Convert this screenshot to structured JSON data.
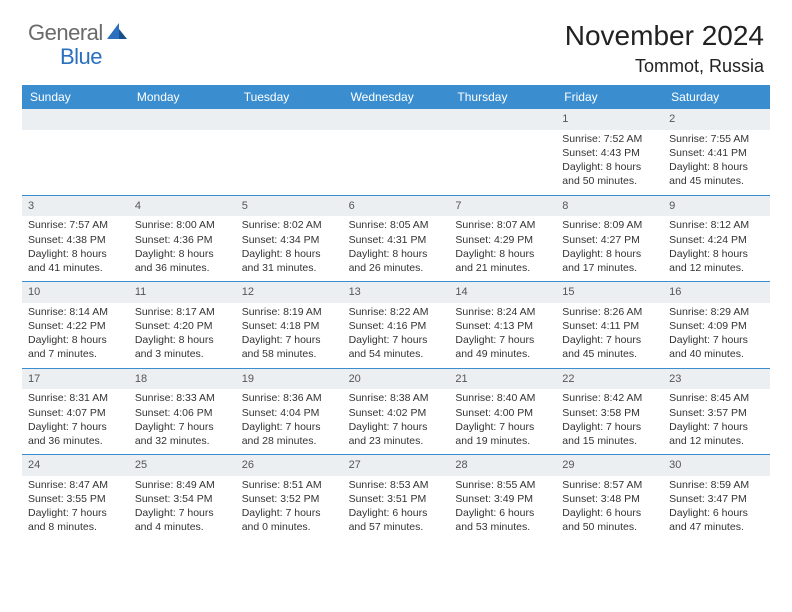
{
  "logo": {
    "general": "General",
    "blue": "Blue"
  },
  "title": "November 2024",
  "location": "Tommot, Russia",
  "colors": {
    "header_bg": "#3a8ed0",
    "day_bg": "#eceff1",
    "rule": "#3a8ed0",
    "text": "#333333",
    "logo_gray": "#6a6a6a",
    "logo_blue": "#2b6fbf"
  },
  "weekdays": [
    "Sunday",
    "Monday",
    "Tuesday",
    "Wednesday",
    "Thursday",
    "Friday",
    "Saturday"
  ],
  "weeks": [
    [
      null,
      null,
      null,
      null,
      null,
      {
        "n": "1",
        "sunrise": "7:52 AM",
        "sunset": "4:43 PM",
        "dl1": "Daylight: 8 hours",
        "dl2": "and 50 minutes."
      },
      {
        "n": "2",
        "sunrise": "7:55 AM",
        "sunset": "4:41 PM",
        "dl1": "Daylight: 8 hours",
        "dl2": "and 45 minutes."
      }
    ],
    [
      {
        "n": "3",
        "sunrise": "7:57 AM",
        "sunset": "4:38 PM",
        "dl1": "Daylight: 8 hours",
        "dl2": "and 41 minutes."
      },
      {
        "n": "4",
        "sunrise": "8:00 AM",
        "sunset": "4:36 PM",
        "dl1": "Daylight: 8 hours",
        "dl2": "and 36 minutes."
      },
      {
        "n": "5",
        "sunrise": "8:02 AM",
        "sunset": "4:34 PM",
        "dl1": "Daylight: 8 hours",
        "dl2": "and 31 minutes."
      },
      {
        "n": "6",
        "sunrise": "8:05 AM",
        "sunset": "4:31 PM",
        "dl1": "Daylight: 8 hours",
        "dl2": "and 26 minutes."
      },
      {
        "n": "7",
        "sunrise": "8:07 AM",
        "sunset": "4:29 PM",
        "dl1": "Daylight: 8 hours",
        "dl2": "and 21 minutes."
      },
      {
        "n": "8",
        "sunrise": "8:09 AM",
        "sunset": "4:27 PM",
        "dl1": "Daylight: 8 hours",
        "dl2": "and 17 minutes."
      },
      {
        "n": "9",
        "sunrise": "8:12 AM",
        "sunset": "4:24 PM",
        "dl1": "Daylight: 8 hours",
        "dl2": "and 12 minutes."
      }
    ],
    [
      {
        "n": "10",
        "sunrise": "8:14 AM",
        "sunset": "4:22 PM",
        "dl1": "Daylight: 8 hours",
        "dl2": "and 7 minutes."
      },
      {
        "n": "11",
        "sunrise": "8:17 AM",
        "sunset": "4:20 PM",
        "dl1": "Daylight: 8 hours",
        "dl2": "and 3 minutes."
      },
      {
        "n": "12",
        "sunrise": "8:19 AM",
        "sunset": "4:18 PM",
        "dl1": "Daylight: 7 hours",
        "dl2": "and 58 minutes."
      },
      {
        "n": "13",
        "sunrise": "8:22 AM",
        "sunset": "4:16 PM",
        "dl1": "Daylight: 7 hours",
        "dl2": "and 54 minutes."
      },
      {
        "n": "14",
        "sunrise": "8:24 AM",
        "sunset": "4:13 PM",
        "dl1": "Daylight: 7 hours",
        "dl2": "and 49 minutes."
      },
      {
        "n": "15",
        "sunrise": "8:26 AM",
        "sunset": "4:11 PM",
        "dl1": "Daylight: 7 hours",
        "dl2": "and 45 minutes."
      },
      {
        "n": "16",
        "sunrise": "8:29 AM",
        "sunset": "4:09 PM",
        "dl1": "Daylight: 7 hours",
        "dl2": "and 40 minutes."
      }
    ],
    [
      {
        "n": "17",
        "sunrise": "8:31 AM",
        "sunset": "4:07 PM",
        "dl1": "Daylight: 7 hours",
        "dl2": "and 36 minutes."
      },
      {
        "n": "18",
        "sunrise": "8:33 AM",
        "sunset": "4:06 PM",
        "dl1": "Daylight: 7 hours",
        "dl2": "and 32 minutes."
      },
      {
        "n": "19",
        "sunrise": "8:36 AM",
        "sunset": "4:04 PM",
        "dl1": "Daylight: 7 hours",
        "dl2": "and 28 minutes."
      },
      {
        "n": "20",
        "sunrise": "8:38 AM",
        "sunset": "4:02 PM",
        "dl1": "Daylight: 7 hours",
        "dl2": "and 23 minutes."
      },
      {
        "n": "21",
        "sunrise": "8:40 AM",
        "sunset": "4:00 PM",
        "dl1": "Daylight: 7 hours",
        "dl2": "and 19 minutes."
      },
      {
        "n": "22",
        "sunrise": "8:42 AM",
        "sunset": "3:58 PM",
        "dl1": "Daylight: 7 hours",
        "dl2": "and 15 minutes."
      },
      {
        "n": "23",
        "sunrise": "8:45 AM",
        "sunset": "3:57 PM",
        "dl1": "Daylight: 7 hours",
        "dl2": "and 12 minutes."
      }
    ],
    [
      {
        "n": "24",
        "sunrise": "8:47 AM",
        "sunset": "3:55 PM",
        "dl1": "Daylight: 7 hours",
        "dl2": "and 8 minutes."
      },
      {
        "n": "25",
        "sunrise": "8:49 AM",
        "sunset": "3:54 PM",
        "dl1": "Daylight: 7 hours",
        "dl2": "and 4 minutes."
      },
      {
        "n": "26",
        "sunrise": "8:51 AM",
        "sunset": "3:52 PM",
        "dl1": "Daylight: 7 hours",
        "dl2": "and 0 minutes."
      },
      {
        "n": "27",
        "sunrise": "8:53 AM",
        "sunset": "3:51 PM",
        "dl1": "Daylight: 6 hours",
        "dl2": "and 57 minutes."
      },
      {
        "n": "28",
        "sunrise": "8:55 AM",
        "sunset": "3:49 PM",
        "dl1": "Daylight: 6 hours",
        "dl2": "and 53 minutes."
      },
      {
        "n": "29",
        "sunrise": "8:57 AM",
        "sunset": "3:48 PM",
        "dl1": "Daylight: 6 hours",
        "dl2": "and 50 minutes."
      },
      {
        "n": "30",
        "sunrise": "8:59 AM",
        "sunset": "3:47 PM",
        "dl1": "Daylight: 6 hours",
        "dl2": "and 47 minutes."
      }
    ]
  ]
}
